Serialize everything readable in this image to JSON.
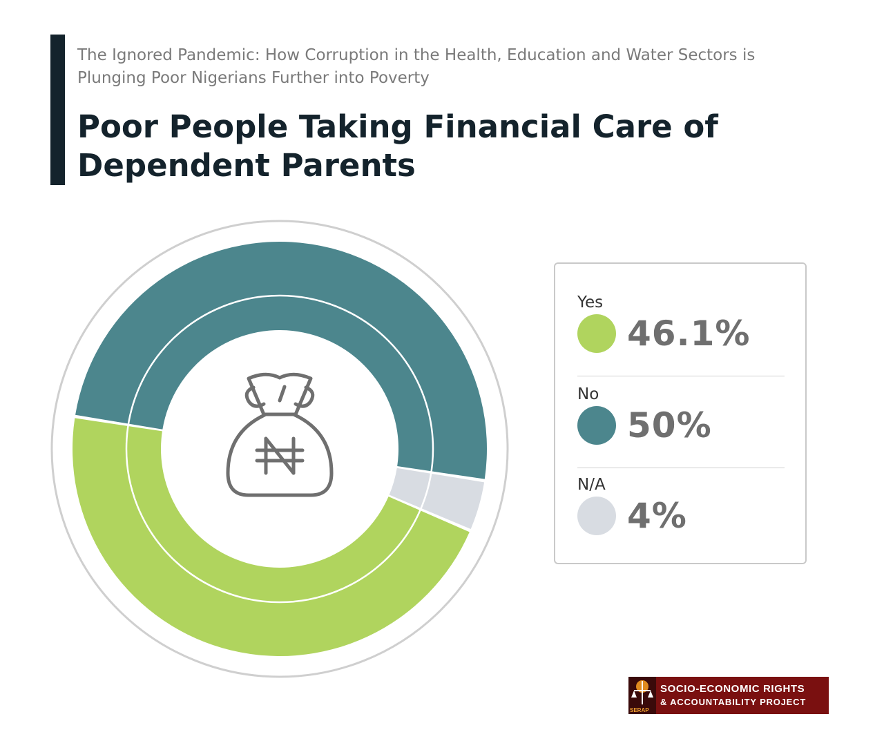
{
  "header": {
    "subtitle": "The Ignored Pandemic: How Corruption in the Health, Education and Water Sectors is Plunging Poor Nigerians Further into Poverty",
    "title": "Poor People Taking Financial Care of Dependent Parents"
  },
  "chart_data": {
    "type": "pie",
    "categories": [
      "Yes",
      "No",
      "N/A"
    ],
    "values": [
      46.1,
      50,
      4
    ],
    "value_labels": [
      "46.1%",
      "50%",
      "4%"
    ],
    "colors": [
      "#b0d45e",
      "#4c868d",
      "#d8dce2"
    ],
    "center_icon": "naira-money-bag-icon",
    "legend_position": "right"
  },
  "logo": {
    "line1": "SOCIO-ECONOMIC RIGHTS",
    "line2": "& ACCOUNTABILITY PROJECT",
    "emblem_text": "SERAP",
    "colors": {
      "background": "#7a1010",
      "emblem": "#3a0a0a"
    }
  },
  "colors": {
    "accent_bar": "#14232c",
    "title": "#14232c",
    "subtitle": "#7a7a7a"
  }
}
